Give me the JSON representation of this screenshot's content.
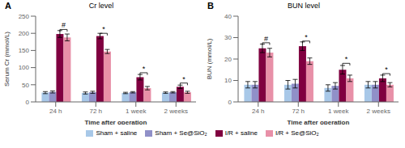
{
  "chart_data": [
    {
      "type": "bar",
      "panel": "A",
      "title": "Cr level",
      "xlabel": "Time after operation",
      "ylabel": "Serum Cr (mmol/L)",
      "categories": [
        "24 h",
        "72 h",
        "1 week",
        "2 weeks"
      ],
      "series": [
        {
          "name": "Sham + saline",
          "color": "#a8c8e8",
          "values": [
            27,
            26,
            26,
            27
          ],
          "errors": [
            3,
            3,
            2,
            2
          ]
        },
        {
          "name": "Sham + Se@SiO₂",
          "color": "#9090c8",
          "values": [
            29,
            28,
            28,
            28
          ],
          "errors": [
            3,
            3,
            2,
            2
          ]
        },
        {
          "name": "I/R + saline",
          "color": "#800040",
          "values": [
            198,
            192,
            72,
            44
          ],
          "errors": [
            10,
            8,
            8,
            5
          ]
        },
        {
          "name": "I/R + Se@SiO₂",
          "color": "#e890a8",
          "values": [
            188,
            147,
            40,
            28
          ],
          "errors": [
            10,
            6,
            5,
            3
          ]
        }
      ],
      "ylim": [
        0,
        250
      ],
      "yticks": [
        0,
        50,
        100,
        150,
        200,
        250
      ],
      "grid": false,
      "legend": "bottom",
      "annotations": [
        {
          "text": "#",
          "x": "24 h",
          "y": 211.25
        },
        {
          "text": "*",
          "x": "72 h",
          "y": 200
        },
        {
          "text": "*",
          "x": "1 week",
          "y": 85
        },
        {
          "text": "*",
          "x": "2 weeks",
          "y": 55
        }
      ]
    },
    {
      "type": "bar",
      "panel": "B",
      "title": "BUN level",
      "xlabel": "Time after operation",
      "ylabel": "BUN (mmol/L)",
      "categories": [
        "24 h",
        "72 h",
        "1 week",
        "2 weeks"
      ],
      "series": [
        {
          "name": "Sham + saline",
          "color": "#a8c8e8",
          "values": [
            8,
            8,
            6.5,
            8
          ],
          "errors": [
            1.5,
            2,
            1.5,
            1.5
          ]
        },
        {
          "name": "Sham + Se@SiO₂",
          "color": "#9090c8",
          "values": [
            8,
            8.5,
            7.5,
            8
          ],
          "errors": [
            1.5,
            2,
            1.5,
            1.5
          ]
        },
        {
          "name": "I/R + saline",
          "color": "#800040",
          "values": [
            25,
            26,
            15,
            11
          ],
          "errors": [
            2,
            2,
            2,
            1.5
          ]
        },
        {
          "name": "I/R + Se@SiO₂",
          "color": "#e890a8",
          "values": [
            23,
            19,
            11,
            8
          ],
          "errors": [
            2,
            1.5,
            1.5,
            1
          ]
        }
      ],
      "ylim": [
        0,
        40
      ],
      "yticks": [
        0,
        10,
        20,
        30,
        40
      ],
      "grid": false,
      "legend": "bottom",
      "annotations": [
        {
          "text": "#",
          "x": "24 h",
          "y": 27.6
        },
        {
          "text": "*",
          "x": "72 h",
          "y": 28.4
        },
        {
          "text": "*",
          "x": "1 week",
          "y": 18
        },
        {
          "text": "*",
          "x": "2 weeks",
          "y": 13.2
        }
      ]
    }
  ]
}
